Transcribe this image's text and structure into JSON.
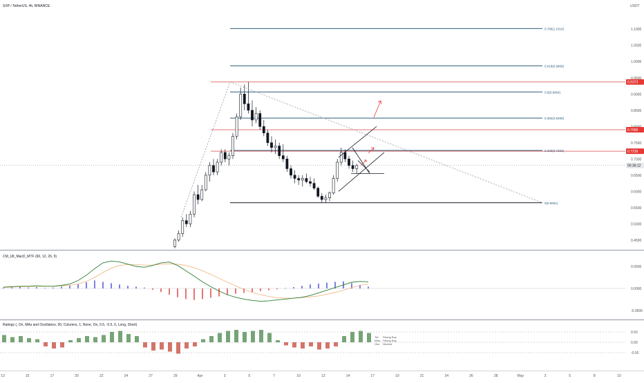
{
  "header": {
    "symbol_line": "SXP / TetherUS, 4h, BINANCE"
  },
  "price_axis": {
    "unit": "USDT",
    "ticks": [
      "1.1000",
      "1.0500",
      "1.0000",
      "0.9500",
      "0.9000",
      "0.8500",
      "0.8000",
      "0.7500",
      "0.7000",
      "0.6500",
      "0.6000",
      "0.5500",
      "0.5000",
      "0.4500"
    ],
    "tick_values": [
      1.1,
      1.05,
      1.0,
      0.95,
      0.9,
      0.85,
      0.8,
      0.75,
      0.7,
      0.65,
      0.6,
      0.55,
      0.5,
      0.45
    ],
    "badges": [
      {
        "text": "0.9373",
        "value": 0.9373,
        "color": "#e53935"
      },
      {
        "text": "0.7900",
        "value": 0.79,
        "color": "#e53935"
      },
      {
        "text": "0.7239",
        "value": 0.7239,
        "color": "#e53935"
      },
      {
        "text": "00:36:12",
        "value": 0.68,
        "color": "#e7e9ec"
      }
    ]
  },
  "fib_levels": [
    {
      "label": "0.786(1.1019)",
      "value": 1.1019
    },
    {
      "label": "0.618(0.9869)",
      "value": 0.9869
    },
    {
      "label": "0.5(0.9064)",
      "value": 0.9064
    },
    {
      "label": "0.382(0.8259)",
      "value": 0.8259
    },
    {
      "label": "0.236(0.7263)",
      "value": 0.7263
    },
    {
      "label": "0(0.5651)",
      "value": 0.5651
    }
  ],
  "horizontal_lines": [
    {
      "value": 0.9373,
      "color": "#e57373"
    },
    {
      "value": 0.79,
      "color": "#e57373"
    },
    {
      "value": 0.7239,
      "color": "#e57373"
    }
  ],
  "macd_panel": {
    "title": "CM_Ult_MacD_MTF (60, 12, 26, 9)",
    "ticks": [
      "0.0500",
      "0.0000",
      "-0.0500"
    ],
    "tick_values": [
      0.05,
      0.0,
      -0.05
    ]
  },
  "ratings_panel": {
    "title": "Ratings (, On, MAs and Oscillators, 50, Columns, 1, None, On, 0.5, -0.5, 0, Long, Short)",
    "ticks": [
      "0.50",
      "0.00",
      "-0.50"
    ],
    "tick_values": [
      0.5,
      0.0,
      -0.5
    ],
    "legend": [
      {
        "prefix": "Tot:",
        "text": "Strong Buy"
      },
      {
        "prefix": "MAs:",
        "text": "Strong Buy"
      },
      {
        "prefix": "Osc:",
        "text": "Neutral"
      }
    ]
  },
  "time_axis": {
    "labels": [
      "13",
      "15",
      "17",
      "20",
      "22",
      "24",
      "27",
      "29",
      "Apr",
      "3",
      "5",
      "7",
      "10",
      "12",
      "14",
      "17",
      "19",
      "21",
      "24",
      "26",
      "28",
      "May",
      "3",
      "5",
      "8",
      "10"
    ]
  },
  "chart_data": {
    "type": "candlestick",
    "title": "SXP / TetherUS, 4h, BINANCE",
    "ylabel": "USDT",
    "ylim": [
      0.42,
      1.16
    ],
    "candles": [
      {
        "o": 0.43,
        "h": 0.455,
        "l": 0.425,
        "c": 0.45
      },
      {
        "o": 0.45,
        "h": 0.48,
        "l": 0.445,
        "c": 0.47
      },
      {
        "o": 0.47,
        "h": 0.52,
        "l": 0.46,
        "c": 0.51
      },
      {
        "o": 0.51,
        "h": 0.53,
        "l": 0.49,
        "c": 0.5
      },
      {
        "o": 0.5,
        "h": 0.54,
        "l": 0.49,
        "c": 0.53
      },
      {
        "o": 0.53,
        "h": 0.6,
        "l": 0.52,
        "c": 0.59
      },
      {
        "o": 0.59,
        "h": 0.62,
        "l": 0.56,
        "c": 0.575
      },
      {
        "o": 0.575,
        "h": 0.62,
        "l": 0.57,
        "c": 0.605
      },
      {
        "o": 0.605,
        "h": 0.66,
        "l": 0.6,
        "c": 0.65
      },
      {
        "o": 0.65,
        "h": 0.69,
        "l": 0.63,
        "c": 0.68
      },
      {
        "o": 0.68,
        "h": 0.7,
        "l": 0.65,
        "c": 0.66
      },
      {
        "o": 0.66,
        "h": 0.7,
        "l": 0.65,
        "c": 0.69
      },
      {
        "o": 0.69,
        "h": 0.73,
        "l": 0.68,
        "c": 0.72
      },
      {
        "o": 0.72,
        "h": 0.73,
        "l": 0.69,
        "c": 0.7
      },
      {
        "o": 0.7,
        "h": 0.72,
        "l": 0.68,
        "c": 0.71
      },
      {
        "o": 0.71,
        "h": 0.78,
        "l": 0.7,
        "c": 0.77
      },
      {
        "o": 0.77,
        "h": 0.84,
        "l": 0.76,
        "c": 0.83
      },
      {
        "o": 0.83,
        "h": 0.92,
        "l": 0.82,
        "c": 0.9
      },
      {
        "o": 0.9,
        "h": 0.93,
        "l": 0.85,
        "c": 0.87
      },
      {
        "o": 0.87,
        "h": 0.9373,
        "l": 0.84,
        "c": 0.85
      },
      {
        "o": 0.85,
        "h": 0.88,
        "l": 0.8,
        "c": 0.82
      },
      {
        "o": 0.82,
        "h": 0.86,
        "l": 0.81,
        "c": 0.84
      },
      {
        "o": 0.84,
        "h": 0.85,
        "l": 0.79,
        "c": 0.8
      },
      {
        "o": 0.8,
        "h": 0.82,
        "l": 0.77,
        "c": 0.78
      },
      {
        "o": 0.78,
        "h": 0.79,
        "l": 0.74,
        "c": 0.75
      },
      {
        "o": 0.75,
        "h": 0.77,
        "l": 0.72,
        "c": 0.735
      },
      {
        "o": 0.735,
        "h": 0.76,
        "l": 0.715,
        "c": 0.74
      },
      {
        "o": 0.74,
        "h": 0.75,
        "l": 0.7,
        "c": 0.71
      },
      {
        "o": 0.71,
        "h": 0.745,
        "l": 0.69,
        "c": 0.7
      },
      {
        "o": 0.7,
        "h": 0.71,
        "l": 0.66,
        "c": 0.67
      },
      {
        "o": 0.67,
        "h": 0.68,
        "l": 0.64,
        "c": 0.65
      },
      {
        "o": 0.65,
        "h": 0.665,
        "l": 0.625,
        "c": 0.64
      },
      {
        "o": 0.64,
        "h": 0.65,
        "l": 0.62,
        "c": 0.635
      },
      {
        "o": 0.635,
        "h": 0.65,
        "l": 0.615,
        "c": 0.64
      },
      {
        "o": 0.64,
        "h": 0.655,
        "l": 0.625,
        "c": 0.63
      },
      {
        "o": 0.63,
        "h": 0.645,
        "l": 0.615,
        "c": 0.625
      },
      {
        "o": 0.625,
        "h": 0.64,
        "l": 0.605,
        "c": 0.61
      },
      {
        "o": 0.61,
        "h": 0.615,
        "l": 0.58,
        "c": 0.585
      },
      {
        "o": 0.585,
        "h": 0.595,
        "l": 0.565,
        "c": 0.575
      },
      {
        "o": 0.575,
        "h": 0.59,
        "l": 0.565,
        "c": 0.58
      },
      {
        "o": 0.58,
        "h": 0.6,
        "l": 0.57,
        "c": 0.595
      },
      {
        "o": 0.595,
        "h": 0.65,
        "l": 0.59,
        "c": 0.64
      },
      {
        "o": 0.64,
        "h": 0.7,
        "l": 0.63,
        "c": 0.69
      },
      {
        "o": 0.69,
        "h": 0.735,
        "l": 0.68,
        "c": 0.72
      },
      {
        "o": 0.72,
        "h": 0.73,
        "l": 0.69,
        "c": 0.7
      },
      {
        "o": 0.7,
        "h": 0.71,
        "l": 0.67,
        "c": 0.68
      },
      {
        "o": 0.68,
        "h": 0.695,
        "l": 0.66,
        "c": 0.67
      },
      {
        "o": 0.67,
        "h": 0.685,
        "l": 0.655,
        "c": 0.68
      }
    ],
    "macd_histogram": [
      0.002,
      0.003,
      0.004,
      0.002,
      0.003,
      0.001,
      0.002,
      0.004,
      0.006,
      0.01,
      0.014,
      0.018,
      0.015,
      0.012,
      0.009,
      0.006,
      0.004,
      0.002,
      -0.003,
      -0.008,
      -0.014,
      -0.02,
      -0.024,
      -0.026,
      -0.024,
      -0.021,
      -0.018,
      -0.015,
      -0.012,
      -0.01,
      -0.008,
      -0.006,
      -0.004,
      -0.002,
      0.001,
      0.003,
      0.006,
      0.009,
      0.011,
      0.013,
      0.015,
      0.016,
      0.012,
      0.008,
      0.004
    ],
    "macd_line": [
      0.003,
      0.004,
      0.005,
      0.005,
      0.006,
      0.005,
      0.005,
      0.007,
      0.01,
      0.018,
      0.03,
      0.045,
      0.058,
      0.062,
      0.06,
      0.055,
      0.05,
      0.048,
      0.052,
      0.058,
      0.06,
      0.052,
      0.04,
      0.028,
      0.015,
      0.004,
      -0.006,
      -0.014,
      -0.02,
      -0.024,
      -0.027,
      -0.029,
      -0.028,
      -0.026,
      -0.024,
      -0.022,
      -0.02,
      -0.016,
      -0.01,
      -0.004,
      0.002,
      0.008,
      0.014,
      0.016,
      0.015
    ],
    "signal_line": [
      0.002,
      0.003,
      0.004,
      0.004,
      0.005,
      0.005,
      0.005,
      0.006,
      0.007,
      0.01,
      0.016,
      0.025,
      0.036,
      0.046,
      0.052,
      0.054,
      0.054,
      0.053,
      0.053,
      0.055,
      0.056,
      0.055,
      0.052,
      0.047,
      0.04,
      0.032,
      0.023,
      0.014,
      0.006,
      -0.002,
      -0.009,
      -0.014,
      -0.018,
      -0.021,
      -0.022,
      -0.022,
      -0.021,
      -0.019,
      -0.017,
      -0.013,
      -0.009,
      -0.004,
      0.002,
      0.007,
      0.01
    ],
    "ratings_columns": [
      0.35,
      0.25,
      0.3,
      0.2,
      0.15,
      -0.2,
      -0.3,
      -0.25,
      0.1,
      0.2,
      0.3,
      0.25,
      0.35,
      0.5,
      0.55,
      0.4,
      0.3,
      -0.25,
      -0.4,
      -0.35,
      -0.45,
      -0.55,
      -0.3,
      -0.2,
      0.15,
      0.3,
      0.45,
      0.55,
      0.6,
      0.5,
      0.55,
      0.6,
      0.45,
      0.1,
      -0.15,
      -0.25,
      -0.3,
      -0.2,
      -0.35,
      -0.3,
      -0.2,
      0.3,
      0.5,
      0.55,
      0.45
    ]
  }
}
